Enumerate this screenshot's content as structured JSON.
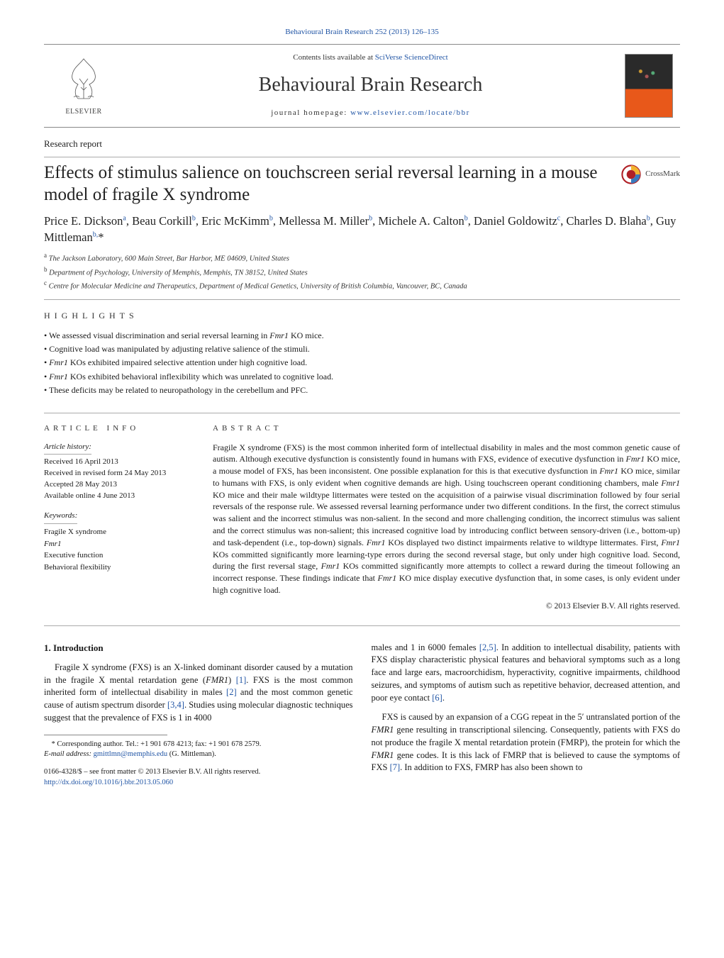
{
  "header": {
    "citation": "Behavioural Brain Research 252 (2013) 126–135",
    "contents_prefix": "Contents lists available at ",
    "contents_link": "SciVerse ScienceDirect",
    "journal_name": "Behavioural Brain Research",
    "homepage_prefix": "journal homepage: ",
    "homepage_url": "www.elsevier.com/locate/bbr",
    "publisher": "ELSEVIER",
    "crossmark": "CrossMark"
  },
  "article": {
    "type": "Research report",
    "title": "Effects of stimulus salience on touchscreen serial reversal learning in a mouse model of fragile X syndrome",
    "authors_html": "Price E. Dickson<sup>a</sup>, Beau Corkill<sup>b</sup>, Eric McKimm<sup>b</sup>, Mellessa M. Miller<sup>b</sup>, Michele A. Calton<sup>b</sup>, Daniel Goldowitz<sup>c</sup>, Charles D. Blaha<sup>b</sup>, Guy Mittleman<sup>b,</sup>*",
    "affiliations": [
      "a The Jackson Laboratory, 600 Main Street, Bar Harbor, ME 04609, United States",
      "b Department of Psychology, University of Memphis, Memphis, TN 38152, United States",
      "c Centre for Molecular Medicine and Therapeutics, Department of Medical Genetics, University of British Columbia, Vancouver, BC, Canada"
    ]
  },
  "highlights": {
    "heading": "HIGHLIGHTS",
    "items": [
      "We assessed visual discrimination and serial reversal learning in Fmr1 KO mice.",
      "Cognitive load was manipulated by adjusting relative salience of the stimuli.",
      "Fmr1 KOs exhibited impaired selective attention under high cognitive load.",
      "Fmr1 KOs exhibited behavioral inflexibility which was unrelated to cognitive load.",
      "These deficits may be related to neuropathology in the cerebellum and PFC."
    ]
  },
  "article_info": {
    "heading": "ARTICLE INFO",
    "history_label": "Article history:",
    "history": [
      "Received 16 April 2013",
      "Received in revised form 24 May 2013",
      "Accepted 28 May 2013",
      "Available online 4 June 2013"
    ],
    "keywords_label": "Keywords:",
    "keywords": [
      "Fragile X syndrome",
      "Fmr1",
      "Executive function",
      "Behavioral flexibility"
    ]
  },
  "abstract": {
    "heading": "ABSTRACT",
    "text": "Fragile X syndrome (FXS) is the most common inherited form of intellectual disability in males and the most common genetic cause of autism. Although executive dysfunction is consistently found in humans with FXS, evidence of executive dysfunction in Fmr1 KO mice, a mouse model of FXS, has been inconsistent. One possible explanation for this is that executive dysfunction in Fmr1 KO mice, similar to humans with FXS, is only evident when cognitive demands are high. Using touchscreen operant conditioning chambers, male Fmr1 KO mice and their male wildtype littermates were tested on the acquisition of a pairwise visual discrimination followed by four serial reversals of the response rule. We assessed reversal learning performance under two different conditions. In the first, the correct stimulus was salient and the incorrect stimulus was non-salient. In the second and more challenging condition, the incorrect stimulus was salient and the correct stimulus was non-salient; this increased cognitive load by introducing conflict between sensory-driven (i.e., bottom-up) and task-dependent (i.e., top-down) signals. Fmr1 KOs displayed two distinct impairments relative to wildtype littermates. First, Fmr1 KOs committed significantly more learning-type errors during the second reversal stage, but only under high cognitive load. Second, during the first reversal stage, Fmr1 KOs committed significantly more attempts to collect a reward during the timeout following an incorrect response. These findings indicate that Fmr1 KO mice display executive dysfunction that, in some cases, is only evident under high cognitive load.",
    "copyright": "© 2013 Elsevier B.V. All rights reserved."
  },
  "body": {
    "intro_heading": "1.  Introduction",
    "left_paras": [
      "Fragile X syndrome (FXS) is an X-linked dominant disorder caused by a mutation in the fragile X mental retardation gene (FMR1) [1]. FXS is the most common inherited form of intellectual disability in males [2] and the most common genetic cause of autism spectrum disorder [3,4]. Studies using molecular diagnostic techniques suggest that the prevalence of FXS is 1 in 4000"
    ],
    "right_paras": [
      "males and 1 in 6000 females [2,5]. In addition to intellectual disability, patients with FXS display characteristic physical features and behavioral symptoms such as a long face and large ears, macroorchidism, hyperactivity, cognitive impairments, childhood seizures, and symptoms of autism such as repetitive behavior, decreased attention, and poor eye contact [6].",
      "FXS is caused by an expansion of a CGG repeat in the 5′ untranslated portion of the FMR1 gene resulting in transcriptional silencing. Consequently, patients with FXS do not produce the fragile X mental retardation protein (FMRP), the protein for which the FMR1 gene codes. It is this lack of FMRP that is believed to cause the symptoms of FXS [7]. In addition to FXS, FMRP has also been shown to"
    ]
  },
  "footer": {
    "corr_text": "* Corresponding author. Tel.: +1 901 678 4213; fax: +1 901 678 2579.",
    "email_label": "E-mail address: ",
    "email": "gmittlmn@memphis.edu",
    "email_suffix": " (G. Mittleman).",
    "issn_line": "0166-4328/$ – see front matter © 2013 Elsevier B.V. All rights reserved.",
    "doi": "http://dx.doi.org/10.1016/j.bbr.2013.05.060"
  },
  "colors": {
    "link": "#2155a5",
    "rule": "#888888",
    "text": "#1a1a1a",
    "cover_top": "#2a2a2a",
    "cover_bottom": "#e8581a"
  }
}
